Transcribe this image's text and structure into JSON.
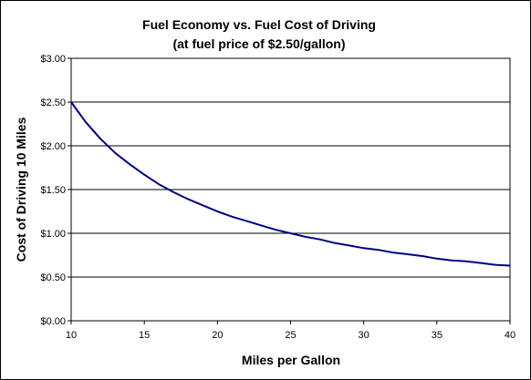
{
  "chart_data": {
    "type": "line",
    "title": "Fuel Economy vs. Fuel Cost of Driving",
    "subtitle": "(at fuel price of $2.50/gallon)",
    "xlabel": "Miles per Gallon",
    "ylabel": "Cost of Driving 10 Miles",
    "xlim": [
      10,
      40
    ],
    "ylim": [
      0,
      3.0
    ],
    "x_ticks": [
      "10",
      "15",
      "20",
      "25",
      "30",
      "35",
      "40"
    ],
    "y_ticks": [
      "$0.00",
      "$0.50",
      "$1.00",
      "$1.50",
      "$2.00",
      "$2.50",
      "$3.00"
    ],
    "grid": "horizontal",
    "legend": "none",
    "series": [
      {
        "color": "#000080",
        "x": [
          10,
          11,
          12,
          13,
          14,
          15,
          16,
          17,
          18,
          19,
          20,
          21,
          22,
          23,
          24,
          25,
          26,
          27,
          28,
          29,
          30,
          31,
          32,
          33,
          34,
          35,
          36,
          37,
          38,
          39,
          40
        ],
        "values": [
          2.5,
          2.27,
          2.08,
          1.92,
          1.79,
          1.67,
          1.56,
          1.47,
          1.39,
          1.32,
          1.25,
          1.19,
          1.14,
          1.09,
          1.04,
          1.0,
          0.96,
          0.93,
          0.89,
          0.86,
          0.83,
          0.81,
          0.78,
          0.76,
          0.74,
          0.71,
          0.69,
          0.68,
          0.66,
          0.64,
          0.63
        ]
      }
    ]
  }
}
